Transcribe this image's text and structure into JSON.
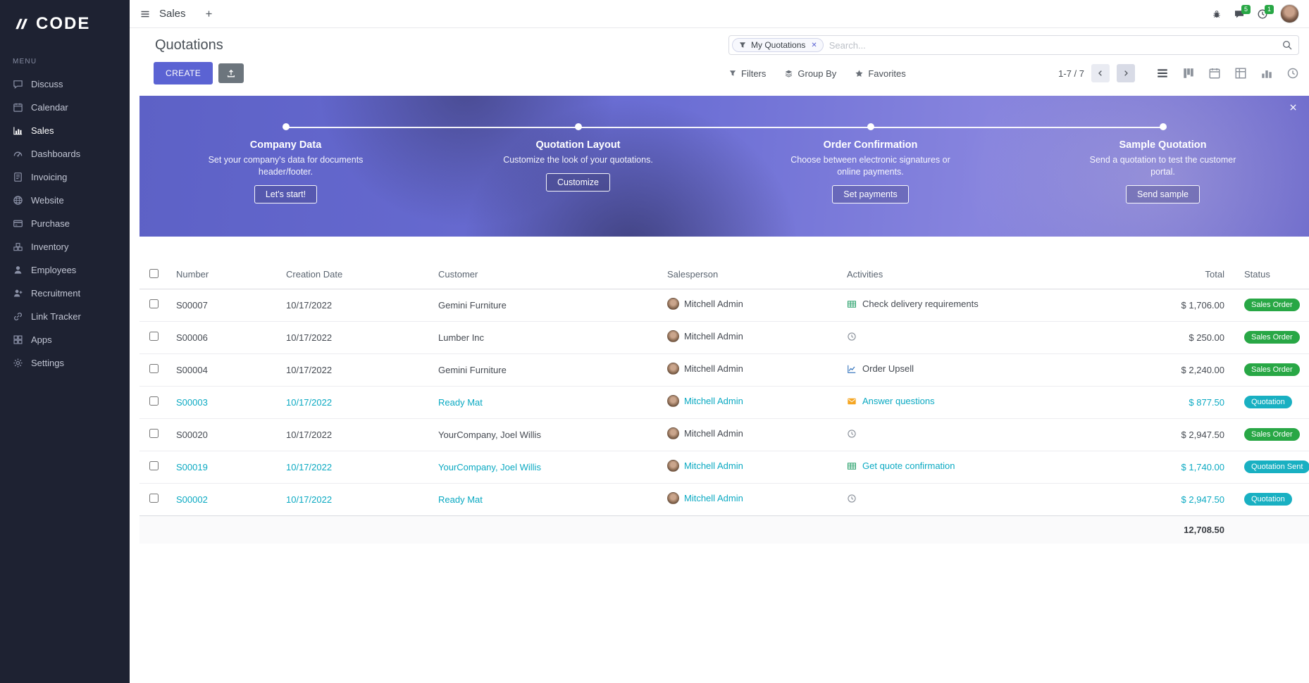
{
  "brand": {
    "logo_text": "CODE"
  },
  "topbar": {
    "app_name": "Sales",
    "messages_badge": "5",
    "activities_badge": "1"
  },
  "sidebar": {
    "menu_label": "MENU",
    "items": [
      {
        "label": "Discuss",
        "icon": "discuss",
        "active": false
      },
      {
        "label": "Calendar",
        "icon": "calendar",
        "active": false
      },
      {
        "label": "Sales",
        "icon": "sales",
        "active": true
      },
      {
        "label": "Dashboards",
        "icon": "dashboards",
        "active": false
      },
      {
        "label": "Invoicing",
        "icon": "invoicing",
        "active": false
      },
      {
        "label": "Website",
        "icon": "website",
        "active": false
      },
      {
        "label": "Purchase",
        "icon": "purchase",
        "active": false
      },
      {
        "label": "Inventory",
        "icon": "inventory",
        "active": false
      },
      {
        "label": "Employees",
        "icon": "employees",
        "active": false
      },
      {
        "label": "Recruitment",
        "icon": "recruitment",
        "active": false
      },
      {
        "label": "Link Tracker",
        "icon": "link",
        "active": false
      },
      {
        "label": "Apps",
        "icon": "apps",
        "active": false
      },
      {
        "label": "Settings",
        "icon": "settings",
        "active": false
      }
    ]
  },
  "control_panel": {
    "title": "Quotations",
    "create_label": "CREATE",
    "filters_label": "Filters",
    "group_by_label": "Group By",
    "favorites_label": "Favorites",
    "pager": "1-7 / 7",
    "search": {
      "chip": "My Quotations",
      "placeholder": "Search..."
    }
  },
  "banner": {
    "steps": [
      {
        "title": "Company Data",
        "desc": "Set your company's data for documents header/footer.",
        "button": "Let's start!"
      },
      {
        "title": "Quotation Layout",
        "desc": "Customize the look of your quotations.",
        "button": "Customize"
      },
      {
        "title": "Order Confirmation",
        "desc": "Choose between electronic signatures or online payments.",
        "button": "Set payments"
      },
      {
        "title": "Sample Quotation",
        "desc": "Send a quotation to test the customer portal.",
        "button": "Send sample"
      }
    ]
  },
  "table": {
    "headers": {
      "number": "Number",
      "creation_date": "Creation Date",
      "customer": "Customer",
      "salesperson": "Salesperson",
      "activities": "Activities",
      "total": "Total",
      "status": "Status"
    },
    "rows": [
      {
        "number": "S00007",
        "creation_date": "10/17/2022",
        "customer": "Gemini Furniture",
        "salesperson": "Mitchell Admin",
        "activity": "Check delivery requirements",
        "activity_icon": "grid",
        "total": "$ 1,706.00",
        "status": "Sales Order",
        "state": "sale",
        "highlight": false
      },
      {
        "number": "S00006",
        "creation_date": "10/17/2022",
        "customer": "Lumber Inc",
        "salesperson": "Mitchell Admin",
        "activity": "",
        "activity_icon": "clock",
        "total": "$ 250.00",
        "status": "Sales Order",
        "state": "sale",
        "highlight": false
      },
      {
        "number": "S00004",
        "creation_date": "10/17/2022",
        "customer": "Gemini Furniture",
        "salesperson": "Mitchell Admin",
        "activity": "Order Upsell",
        "activity_icon": "chartline",
        "total": "$ 2,240.00",
        "status": "Sales Order",
        "state": "sale",
        "highlight": false
      },
      {
        "number": "S00003",
        "creation_date": "10/17/2022",
        "customer": "Ready Mat",
        "salesperson": "Mitchell Admin",
        "activity": "Answer questions",
        "activity_icon": "envelope",
        "total": "$ 877.50",
        "status": "Quotation",
        "state": "draft",
        "highlight": true
      },
      {
        "number": "S00020",
        "creation_date": "10/17/2022",
        "customer": "YourCompany, Joel Willis",
        "salesperson": "Mitchell Admin",
        "activity": "",
        "activity_icon": "clock",
        "total": "$ 2,947.50",
        "status": "Sales Order",
        "state": "sale",
        "highlight": false
      },
      {
        "number": "S00019",
        "creation_date": "10/17/2022",
        "customer": "YourCompany, Joel Willis",
        "salesperson": "Mitchell Admin",
        "activity": "Get quote confirmation",
        "activity_icon": "grid",
        "total": "$ 1,740.00",
        "status": "Quotation Sent",
        "state": "sent",
        "highlight": true
      },
      {
        "number": "S00002",
        "creation_date": "10/17/2022",
        "customer": "Ready Mat",
        "salesperson": "Mitchell Admin",
        "activity": "",
        "activity_icon": "clock",
        "total": "$ 2,947.50",
        "status": "Quotation",
        "state": "draft",
        "highlight": true
      }
    ],
    "footer_total": "12,708.50"
  },
  "colors": {
    "accent": "#5b63d3",
    "secondary_button": "#6c757d",
    "teal_text": "#0aa9c2",
    "badge_green": "#28a745",
    "badge_teal": "#19b0c2",
    "sidebar_bg": "#1e2232"
  }
}
